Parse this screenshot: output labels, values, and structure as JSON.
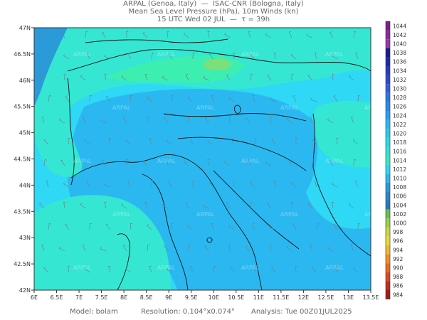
{
  "header": {
    "line1": "ARPAL (Genoa, Italy)  —  ISAC-CNR (Bologna, Italy)",
    "line2": "Mean Sea Level Pressure (hPa), 10m Winds (kn)",
    "line3": "15 UTC Wed 02 JUL  —  τ = 39h"
  },
  "map": {
    "lon_ticks": [
      "6E",
      "6.5E",
      "7E",
      "7.5E",
      "8E",
      "8.5E",
      "9E",
      "9.5E",
      "10E",
      "10.5E",
      "11E",
      "11.5E",
      "12E",
      "12.5E",
      "13E",
      "13.5E"
    ],
    "lat_ticks": [
      "47N",
      "46.5N",
      "46N",
      "45.5N",
      "45N",
      "44.5N",
      "44N",
      "43.5N",
      "43N",
      "42.5N",
      "42N"
    ],
    "lon_range": [
      6,
      13.5
    ],
    "lat_range": [
      42,
      47
    ],
    "watermark": "ARPAL",
    "colors": {
      "p1010": "#2bb8f0",
      "p1012": "#2fd8f4",
      "p1014": "#35e7d2",
      "p1016": "#3cefb0",
      "p1020": "#7be07a",
      "p1008": "#2a9ad8",
      "coast": "#111111",
      "border": "#222222",
      "wind": "#5a8a9a"
    }
  },
  "colorbar": {
    "labels": [
      "1044",
      "1042",
      "1040",
      "1038",
      "1036",
      "1034",
      "1032",
      "1030",
      "1028",
      "1026",
      "1024",
      "1022",
      "1020",
      "1018",
      "1016",
      "1014",
      "1012",
      "1010",
      "1008",
      "1006",
      "1004",
      "1002",
      "1000",
      "998",
      "996",
      "994",
      "992",
      "990",
      "988",
      "986",
      "984"
    ],
    "colors": [
      "#7a1f8a",
      "#8a2a9a",
      "#9a35aa",
      "#1a1a8a",
      "#1e2aa0",
      "#2a3ab8",
      "#3048c8",
      "#3a5ad8",
      "#2a7ae0",
      "#2a8ae8",
      "#2aa0f0",
      "#2ab8f0",
      "#2acbe8",
      "#2ad8e8",
      "#35e2d8",
      "#3ae8c0",
      "#2fd8f4",
      "#2bb8f0",
      "#2a9ad8",
      "#2a86c8",
      "#2a78b8",
      "#6abf50",
      "#9ad04a",
      "#c8d840",
      "#e8d838",
      "#f0b830",
      "#f09028",
      "#e86a24",
      "#d84a22",
      "#c02a20",
      "#a01a1a"
    ]
  },
  "footer": {
    "model": "Model: bolam",
    "resolution": "Resolution: 0.104°x0.074°",
    "analysis": "Analysis: Tue 00Z01JUL2025"
  }
}
